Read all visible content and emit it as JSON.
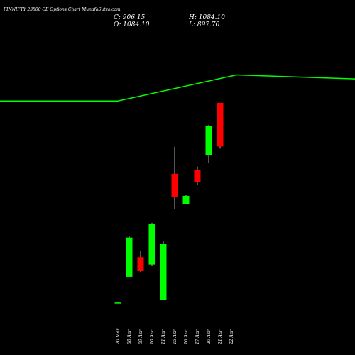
{
  "header": {
    "title": "FINNIFTY 23500 CE Options Chart MunafaSutra.com",
    "close_label": "C: 906.15",
    "open_label": "O: 1084.10",
    "high_label": "H: 1084.10",
    "low_label": "L: 897.70"
  },
  "colors": {
    "background": "#000000",
    "bull": "#00ff00",
    "bear": "#ff0000",
    "text": "#ffffff",
    "wick": "#aaaaaa"
  },
  "chart_data": [
    {
      "type": "candlestick",
      "categories": [
        "20 Mar",
        "08 Apr",
        "09 Apr",
        "10 Apr",
        "11 Apr",
        "15 Apr",
        "16 Apr",
        "17 Apr",
        "20 Apr",
        "21 Apr",
        "22 Apr"
      ],
      "candles": [
        {
          "date": "20 Mar",
          "open": 270,
          "high": 270,
          "low": 268,
          "close": 269,
          "direction": "flat"
        },
        {
          "date": "08 Apr",
          "open": 375,
          "high": 540,
          "low": 375,
          "close": 535,
          "direction": "up"
        },
        {
          "date": "09 Apr",
          "open": 455,
          "high": 480,
          "low": 395,
          "close": 400,
          "direction": "down"
        },
        {
          "date": "10 Apr",
          "open": 425,
          "high": 595,
          "low": 420,
          "close": 590,
          "direction": "up"
        },
        {
          "date": "11 Apr",
          "open": 280,
          "high": 520,
          "low": 280,
          "close": 510,
          "direction": "up"
        },
        {
          "date": "15 Apr",
          "open": 795,
          "high": 905,
          "low": 650,
          "close": 700,
          "direction": "down"
        },
        {
          "date": "16 Apr",
          "open": 670,
          "high": 710,
          "low": 670,
          "close": 705,
          "direction": "up"
        },
        {
          "date": "17 Apr",
          "open": 810,
          "high": 825,
          "low": 750,
          "close": 760,
          "direction": "down"
        },
        {
          "date": "20 Apr",
          "open": 870,
          "high": 995,
          "low": 840,
          "close": 990,
          "direction": "up"
        },
        {
          "date": "21 Apr",
          "open": 1084.1,
          "high": 1084.1,
          "low": 897.7,
          "close": 906.15,
          "direction": "down"
        }
      ],
      "ylim": [
        230,
        1330
      ]
    },
    {
      "type": "line",
      "x_labels": [
        "08 Apr",
        "20 Apr"
      ],
      "values": [
        2170,
        2170,
        2500,
        2450
      ],
      "x_positions": [
        0,
        5,
        10,
        15
      ]
    }
  ]
}
